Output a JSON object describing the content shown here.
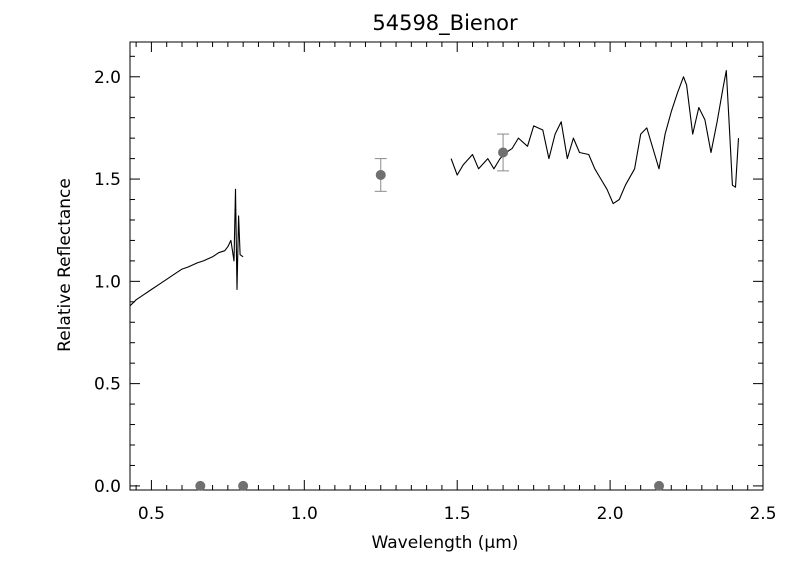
{
  "chart_data": {
    "type": "line",
    "title": "54598_Bienor",
    "xlabel": "Wavelength (μm)",
    "ylabel": "Relative Reflectance",
    "xlim": [
      0.43,
      2.5
    ],
    "ylim": [
      -0.02,
      2.17
    ],
    "xticks": [
      0.5,
      1.0,
      1.5,
      2.0,
      2.5
    ],
    "xtick_labels": [
      "0.5",
      "1.0",
      "1.5",
      "2.0",
      "2.5"
    ],
    "yticks": [
      0.0,
      0.5,
      1.0,
      1.5,
      2.0
    ],
    "ytick_labels": [
      "0.0",
      "0.5",
      "1.0",
      "1.5",
      "2.0"
    ],
    "grid": false,
    "colors": {
      "spectrum": "#000000",
      "photometry": "#707070",
      "errorbar": "#8a8a8a",
      "frame": "#000000"
    },
    "series": [
      {
        "kind": "spectrum",
        "x": [
          0.43,
          0.45,
          0.47,
          0.5,
          0.52,
          0.55,
          0.57,
          0.6,
          0.62,
          0.65,
          0.67,
          0.7,
          0.72,
          0.74,
          0.75,
          0.76,
          0.77,
          0.775,
          0.78,
          0.785,
          0.79,
          0.8
        ],
        "y": [
          0.88,
          0.91,
          0.93,
          0.96,
          0.98,
          1.01,
          1.03,
          1.06,
          1.07,
          1.09,
          1.1,
          1.12,
          1.14,
          1.15,
          1.17,
          1.2,
          1.1,
          1.45,
          0.96,
          1.32,
          1.13,
          1.12
        ]
      },
      {
        "kind": "spectrum",
        "x": [
          1.48,
          1.5,
          1.52,
          1.55,
          1.57,
          1.6,
          1.62,
          1.64,
          1.66,
          1.68,
          1.7,
          1.73,
          1.75,
          1.78,
          1.8,
          1.82,
          1.84,
          1.86,
          1.88,
          1.9,
          1.93,
          1.95,
          1.97,
          1.99,
          2.01,
          2.03,
          2.05,
          2.08,
          2.1,
          2.12,
          2.14,
          2.16,
          2.18,
          2.2,
          2.22,
          2.24,
          2.25,
          2.27,
          2.29,
          2.31,
          2.33,
          2.35,
          2.37,
          2.38,
          2.39,
          2.4,
          2.41,
          2.42
        ],
        "y": [
          1.6,
          1.52,
          1.57,
          1.62,
          1.55,
          1.6,
          1.55,
          1.6,
          1.63,
          1.65,
          1.7,
          1.66,
          1.76,
          1.74,
          1.6,
          1.72,
          1.78,
          1.6,
          1.7,
          1.63,
          1.62,
          1.55,
          1.5,
          1.45,
          1.38,
          1.4,
          1.47,
          1.55,
          1.72,
          1.75,
          1.65,
          1.55,
          1.72,
          1.83,
          1.92,
          2.0,
          1.96,
          1.72,
          1.85,
          1.79,
          1.63,
          1.78,
          1.95,
          2.03,
          1.75,
          1.47,
          1.46,
          1.7
        ]
      }
    ],
    "photometry": [
      {
        "x": 0.66,
        "y": 0.0
      },
      {
        "x": 0.8,
        "y": 0.0
      },
      {
        "x": 1.25,
        "y": 1.52,
        "err": 0.08
      },
      {
        "x": 1.65,
        "y": 1.63,
        "err": 0.09
      },
      {
        "x": 2.16,
        "y": 0.0
      }
    ]
  }
}
